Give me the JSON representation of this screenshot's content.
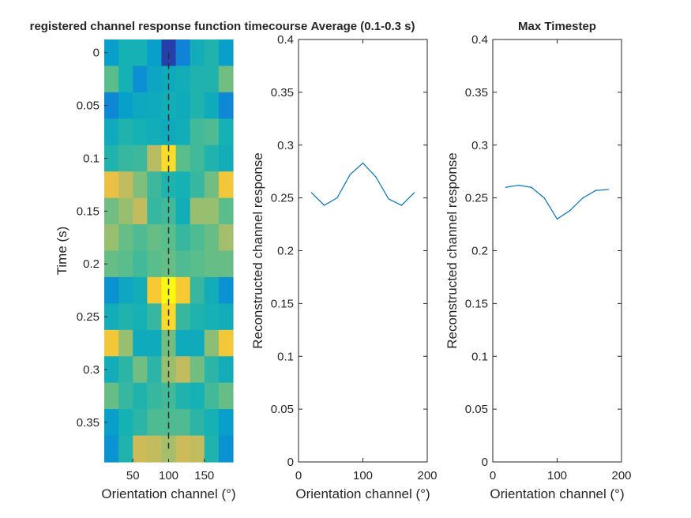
{
  "figure": {
    "background": "#ffffff",
    "axis_color": "#262626",
    "line_color": "#0072BD"
  },
  "chart_data": [
    {
      "type": "heatmap",
      "title": "registered channel response function timecourse",
      "xlabel": "Orientation channel (°)",
      "ylabel": "Time (s)",
      "x_ticks": [
        50,
        100,
        150
      ],
      "y_ticks": [
        0,
        0.05,
        0.1,
        0.15,
        0.2,
        0.25,
        0.3,
        0.35
      ],
      "xlim": [
        10,
        190
      ],
      "ylim": [
        -0.0125,
        0.3875
      ],
      "reverse_y": true,
      "colormap": "parula",
      "color_limits": [
        0.2,
        0.32
      ],
      "x_centers": [
        20,
        40,
        60,
        80,
        100,
        120,
        140,
        160,
        180
      ],
      "y_centers": [
        0,
        0.025,
        0.05,
        0.075,
        0.1,
        0.125,
        0.15,
        0.175,
        0.2,
        0.225,
        0.25,
        0.275,
        0.3,
        0.325,
        0.35,
        0.375
      ],
      "values": [
        [
          0.238,
          0.248,
          0.248,
          0.238,
          0.205,
          0.226,
          0.246,
          0.25,
          0.238
        ],
        [
          0.26,
          0.248,
          0.231,
          0.241,
          0.244,
          0.246,
          0.25,
          0.25,
          0.264
        ],
        [
          0.228,
          0.238,
          0.243,
          0.244,
          0.247,
          0.244,
          0.25,
          0.244,
          0.228
        ],
        [
          0.244,
          0.25,
          0.248,
          0.246,
          0.244,
          0.246,
          0.256,
          0.258,
          0.248
        ],
        [
          0.25,
          0.254,
          0.255,
          0.276,
          0.302,
          0.26,
          0.256,
          0.25,
          0.246
        ],
        [
          0.288,
          0.278,
          0.266,
          0.255,
          0.25,
          0.248,
          0.254,
          0.264,
          0.292
        ],
        [
          0.264,
          0.27,
          0.278,
          0.254,
          0.256,
          0.246,
          0.27,
          0.27,
          0.26
        ],
        [
          0.27,
          0.262,
          0.258,
          0.262,
          0.26,
          0.254,
          0.258,
          0.262,
          0.272
        ],
        [
          0.262,
          0.26,
          0.256,
          0.26,
          0.262,
          0.258,
          0.26,
          0.262,
          0.262
        ],
        [
          0.232,
          0.242,
          0.246,
          0.294,
          0.318,
          0.294,
          0.254,
          0.246,
          0.232
        ],
        [
          0.246,
          0.25,
          0.248,
          0.254,
          0.3,
          0.254,
          0.25,
          0.248,
          0.246
        ],
        [
          0.292,
          0.27,
          0.244,
          0.244,
          0.264,
          0.244,
          0.244,
          0.268,
          0.292
        ],
        [
          0.246,
          0.252,
          0.264,
          0.252,
          0.27,
          0.278,
          0.264,
          0.252,
          0.246
        ],
        [
          0.262,
          0.254,
          0.25,
          0.254,
          0.256,
          0.25,
          0.248,
          0.256,
          0.262
        ],
        [
          0.238,
          0.248,
          0.252,
          0.258,
          0.258,
          0.258,
          0.252,
          0.248,
          0.238
        ],
        [
          0.232,
          0.25,
          0.28,
          0.278,
          0.272,
          0.28,
          0.278,
          0.25,
          0.232
        ]
      ],
      "center_line_x": 100
    },
    {
      "type": "line",
      "title": "Average (0.1-0.3 s)",
      "xlabel": "Orientation channel (°)",
      "ylabel": "Reconstructed channel response",
      "x_ticks": [
        0,
        100,
        200
      ],
      "y_ticks": [
        0,
        0.05,
        0.1,
        0.15,
        0.2,
        0.25,
        0.3,
        0.35,
        0.4
      ],
      "xlim": [
        0,
        200
      ],
      "ylim": [
        0,
        0.4
      ],
      "x": [
        20,
        40,
        60,
        80,
        100,
        120,
        140,
        160,
        180
      ],
      "y": [
        0.255,
        0.243,
        0.25,
        0.272,
        0.283,
        0.27,
        0.249,
        0.243,
        0.255
      ]
    },
    {
      "type": "line",
      "title": "Max Timestep",
      "xlabel": "Orientation channel (°)",
      "ylabel": "Reconstructed channel response",
      "x_ticks": [
        0,
        100,
        200
      ],
      "y_ticks": [
        0,
        0.05,
        0.1,
        0.15,
        0.2,
        0.25,
        0.3,
        0.35,
        0.4
      ],
      "xlim": [
        0,
        200
      ],
      "ylim": [
        0,
        0.4
      ],
      "x": [
        20,
        40,
        60,
        80,
        100,
        120,
        140,
        160,
        180
      ],
      "y": [
        0.26,
        0.262,
        0.26,
        0.25,
        0.23,
        0.238,
        0.25,
        0.257,
        0.258
      ]
    }
  ]
}
